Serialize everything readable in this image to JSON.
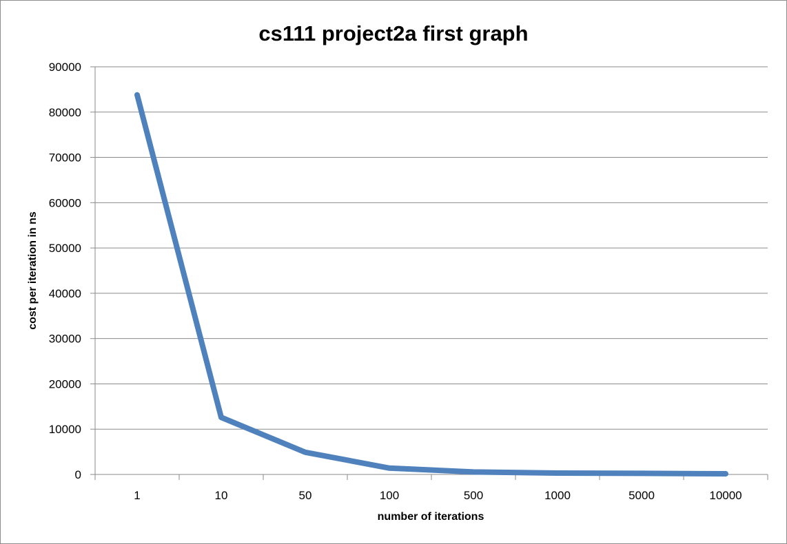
{
  "chart_data": {
    "type": "line",
    "title": "cs111 project2a first graph",
    "xlabel": "number of iterations",
    "ylabel": "cost  per iteration in ns",
    "categories": [
      "1",
      "10",
      "50",
      "100",
      "500",
      "1000",
      "5000",
      "10000"
    ],
    "series": [
      {
        "values": [
          83800,
          12600,
          4900,
          1400,
          550,
          300,
          250,
          150
        ],
        "color": "#4f81bd"
      }
    ],
    "ylim": [
      0,
      90000
    ],
    "yticks": [
      0,
      10000,
      20000,
      30000,
      40000,
      50000,
      60000,
      70000,
      80000,
      90000
    ],
    "grid": true,
    "legend": "none"
  }
}
